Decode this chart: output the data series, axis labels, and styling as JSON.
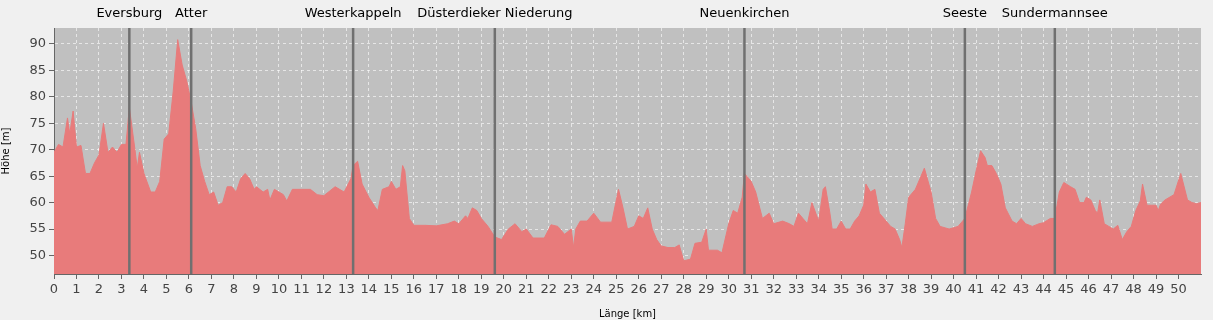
{
  "chart_data": {
    "type": "area",
    "xlabel": "Länge [km]",
    "ylabel": "Höhe [m]",
    "xlim": [
      0,
      51
    ],
    "xticks": [
      0,
      1,
      2,
      3,
      4,
      5,
      6,
      7,
      8,
      9,
      10,
      11,
      12,
      13,
      14,
      15,
      16,
      17,
      18,
      19,
      20,
      21,
      22,
      23,
      24,
      25,
      26,
      27,
      28,
      29,
      30,
      31,
      32,
      33,
      34,
      35,
      36,
      37,
      38,
      39,
      40,
      41,
      42,
      43,
      44,
      45,
      46,
      47,
      48,
      49,
      50
    ],
    "ylim": [
      46.5,
      93
    ],
    "yticks": [
      50,
      55,
      60,
      65,
      70,
      75,
      80,
      85,
      90
    ],
    "grid": true,
    "series": [
      {
        "color": "#e87b7b",
        "x": [
          0,
          0.2,
          0.4,
          0.6,
          0.7,
          0.85,
          1.0,
          1.2,
          1.4,
          1.6,
          1.8,
          2.0,
          2.2,
          2.4,
          2.6,
          2.8,
          3.0,
          3.2,
          3.35,
          3.6,
          3.7,
          3.8,
          4.0,
          4.3,
          4.5,
          4.7,
          4.9,
          5.1,
          5.3,
          5.5,
          5.7,
          5.9,
          6.1,
          6.3,
          6.5,
          6.7,
          6.9,
          7.1,
          7.3,
          7.5,
          7.7,
          7.9,
          8.1,
          8.3,
          8.5,
          8.7,
          8.9,
          9.0,
          9.3,
          9.5,
          9.6,
          9.8,
          10.2,
          10.35,
          10.6,
          11.0,
          11.4,
          11.7,
          12.0,
          12.5,
          12.9,
          13.2,
          13.3,
          13.5,
          13.7,
          14.0,
          14.3,
          14.4,
          14.6,
          14.9,
          15.0,
          15.2,
          15.4,
          15.5,
          15.6,
          15.8,
          16.0,
          16.5,
          17.0,
          17.5,
          17.8,
          18.0,
          18.3,
          18.4,
          18.6,
          18.8,
          19.0,
          19.3,
          19.6,
          19.9,
          20.2,
          20.5,
          20.8,
          21.0,
          21.3,
          21.8,
          22.1,
          22.4,
          22.7,
          23.0,
          23.1,
          23.2,
          23.4,
          23.7,
          24.0,
          24.3,
          24.8,
          25.1,
          25.3,
          25.5,
          25.8,
          26.0,
          26.2,
          26.4,
          26.6,
          26.8,
          27.0,
          27.3,
          27.6,
          27.8,
          28.0,
          28.3,
          28.5,
          28.8,
          29.0,
          29.1,
          29.5,
          29.7,
          30.0,
          30.2,
          30.4,
          30.6,
          30.7,
          31.0,
          31.2,
          31.5,
          31.8,
          32.0,
          32.4,
          32.7,
          32.9,
          33.1,
          33.3,
          33.5,
          33.7,
          34.0,
          34.2,
          34.3,
          34.5,
          34.6,
          34.8,
          35.0,
          35.2,
          35.4,
          35.6,
          35.8,
          36.0,
          36.1,
          36.3,
          36.5,
          36.7,
          37.0,
          37.2,
          37.4,
          37.6,
          37.7,
          37.85,
          38.0,
          38.3,
          38.5,
          38.7,
          39.0,
          39.2,
          39.4,
          39.8,
          40.2,
          40.5,
          40.8,
          41.0,
          41.2,
          41.4,
          41.5,
          41.7,
          41.9,
          42.1,
          42.3,
          42.6,
          42.8,
          43.0,
          43.2,
          43.5,
          43.8,
          44.0,
          44.3,
          44.5,
          44.7,
          44.9,
          45.2,
          45.4,
          45.6,
          45.8,
          45.9,
          46.1,
          46.3,
          46.4,
          46.5,
          46.7,
          46.9,
          47.1,
          47.3,
          47.5,
          47.7,
          47.9,
          48.1,
          48.3,
          48.4,
          48.6,
          48.8,
          49.0,
          49.1,
          49.2,
          49.4,
          49.8,
          50.1,
          50.4,
          50.6,
          50.8,
          51.0
        ],
        "values": [
          69.5,
          71,
          70.5,
          76,
          73,
          77.3,
          70.5,
          70.8,
          65.5,
          65.5,
          67.5,
          69,
          75,
          69.5,
          70.5,
          69.5,
          71,
          71,
          78,
          70,
          66.5,
          69.5,
          65.5,
          62,
          62,
          64,
          72,
          73,
          81,
          90.8,
          86,
          83,
          79,
          74,
          67,
          64,
          61.5,
          62,
          59.5,
          60,
          63,
          63,
          62,
          64.5,
          65.5,
          64.5,
          62.5,
          63,
          62,
          62.5,
          60.5,
          62.5,
          61.5,
          60.3,
          62.5,
          62.5,
          62.5,
          61.5,
          61.3,
          63,
          62,
          64.5,
          67,
          67.8,
          63.5,
          61,
          59,
          58.5,
          62.5,
          63,
          64,
          62.5,
          63,
          67,
          66,
          57,
          55.7,
          55.7,
          55.6,
          56,
          56.5,
          56,
          57.5,
          57,
          59,
          58.5,
          57,
          55.5,
          53.5,
          53,
          55,
          56,
          54.5,
          55,
          53.3,
          53.3,
          55.8,
          55.5,
          54,
          55,
          51.5,
          55,
          56.5,
          56.5,
          58,
          56.3,
          56.3,
          62.5,
          59,
          55,
          55.5,
          57.5,
          57,
          59,
          55,
          53,
          51.8,
          51.5,
          51.5,
          52,
          49,
          49.3,
          52.3,
          52.5,
          55,
          51,
          51,
          50.5,
          56,
          58.5,
          58,
          61,
          65.5,
          64,
          62,
          57,
          58,
          56,
          56.5,
          56,
          55.5,
          58,
          57,
          56,
          60,
          56.5,
          62.5,
          63,
          58,
          55,
          55,
          56.5,
          55,
          55,
          56.5,
          57.5,
          59.5,
          63.5,
          62,
          62.5,
          58,
          56.5,
          55.5,
          55,
          53,
          51.5,
          56,
          61,
          62.5,
          64.5,
          66.5,
          62,
          57,
          55.5,
          55,
          55.5,
          57,
          62,
          66,
          69.8,
          68.5,
          67,
          67,
          65.5,
          63.5,
          59,
          56.5,
          56,
          57,
          56,
          55.5,
          56,
          56.2,
          57,
          57,
          62,
          63.8,
          63,
          62.5,
          60,
          60,
          61,
          60.5,
          58.5,
          58,
          60.5,
          56,
          55.5,
          55,
          55.7,
          53,
          54.5,
          55.5,
          58.5,
          60.3,
          63.5,
          59.5,
          59.5,
          59.5,
          58.5,
          59.7,
          60.5,
          61.5,
          65.5,
          60.5,
          60,
          59.8,
          60
        ]
      }
    ],
    "ref_lines": [
      {
        "axis": "x",
        "value": 3.35,
        "label": "Eversburg",
        "color": "#707070"
      },
      {
        "axis": "x",
        "value": 6.1,
        "label": "Atter",
        "color": "#707070"
      },
      {
        "axis": "x",
        "value": 13.3,
        "label": "Westerkappeln",
        "color": "#707070"
      },
      {
        "axis": "x",
        "value": 19.6,
        "label": "Düsterdieker Niederung",
        "color": "#707070"
      },
      {
        "axis": "x",
        "value": 30.7,
        "label": "Neuenkirchen",
        "color": "#707070"
      },
      {
        "axis": "x",
        "value": 40.5,
        "label": "Seeste",
        "color": "#707070"
      },
      {
        "axis": "x",
        "value": 44.5,
        "label": "Sundermannsee",
        "color": "#707070"
      }
    ]
  }
}
